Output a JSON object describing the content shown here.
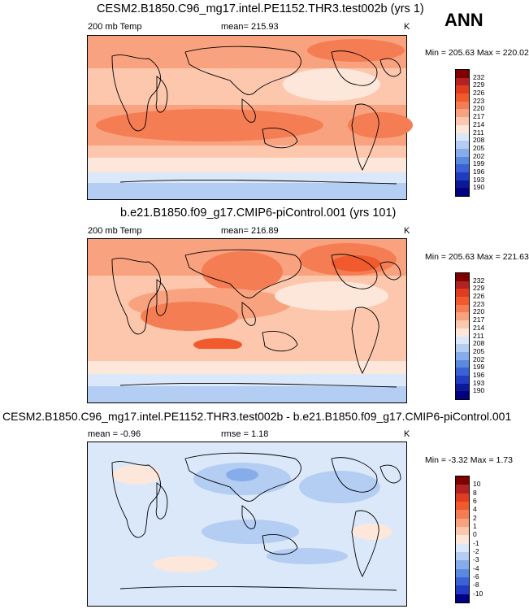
{
  "annual_label": "ANN",
  "panels": [
    {
      "title": "CESM2.B1850.C96_mg17.intel.PE1152.THR3.test002b (yrs 1)",
      "left_label": "200 mb Temp",
      "center_label": "mean= 215.93",
      "units": "K",
      "minmax": "Min = 205.63 Max = 220.02",
      "colorbar_labels": [
        "232",
        "229",
        "226",
        "223",
        "220",
        "217",
        "214",
        "211",
        "208",
        "205",
        "202",
        "199",
        "196",
        "193",
        "190"
      ]
    },
    {
      "title": "b.e21.B1850.f09_g17.CMIP6-piControl.001 (yrs 101)",
      "left_label": "200 mb Temp",
      "center_label": "mean= 216.89",
      "units": "K",
      "minmax": "Min = 205.63 Max = 221.63",
      "colorbar_labels": [
        "232",
        "229",
        "226",
        "223",
        "220",
        "217",
        "214",
        "211",
        "208",
        "205",
        "202",
        "199",
        "196",
        "193",
        "190"
      ]
    },
    {
      "title": "CESM2.B1850.C96_mg17.intel.PE1152.THR3.test002b - b.e21.B1850.f09_g17.CMIP6-piControl.001",
      "left_label": "mean =  -0.96",
      "center_label": "rmse =   1.18",
      "units": "K",
      "minmax": "Min =  -3.32 Max =   1.73",
      "colorbar_labels": [
        "10",
        "8",
        "6",
        "4",
        "2",
        "1",
        "0",
        "-1",
        "-2",
        "-3",
        "-4",
        "-6",
        "-8",
        "-10"
      ]
    }
  ],
  "colors": {
    "abs_scale": [
      "#800000",
      "#b22222",
      "#e03c1f",
      "#f05a2d",
      "#f57d53",
      "#f9a27f",
      "#fcc7ad",
      "#fde7da",
      "#dbe8f9",
      "#b3cdf3",
      "#86adea",
      "#5a8ae0",
      "#3a62d6",
      "#1f3cc2",
      "#0a1a96",
      "#000080"
    ],
    "diff_scale": [
      "#800000",
      "#b22222",
      "#e03c1f",
      "#f05a2d",
      "#f57d53",
      "#f9a27f",
      "#fcc7ad",
      "#fde7da",
      "#dbe8f9",
      "#b3cdf3",
      "#86adea",
      "#5a8ae0",
      "#3a62d6",
      "#1f3cc2",
      "#000080"
    ]
  },
  "chart_data": [
    {
      "type": "heatmap",
      "title": "CESM2.B1850.C96_mg17.intel.PE1152.THR3.test002b (yrs 1)",
      "variable": "200 mb Temp",
      "units": "K",
      "mean": 215.93,
      "min": 205.63,
      "max": 220.02,
      "levels": [
        190,
        193,
        196,
        199,
        202,
        205,
        208,
        211,
        214,
        217,
        220,
        223,
        226,
        229,
        232
      ]
    },
    {
      "type": "heatmap",
      "title": "b.e21.B1850.f09_g17.CMIP6-piControl.001 (yrs 101)",
      "variable": "200 mb Temp",
      "units": "K",
      "mean": 216.89,
      "min": 205.63,
      "max": 221.63,
      "levels": [
        190,
        193,
        196,
        199,
        202,
        205,
        208,
        211,
        214,
        217,
        220,
        223,
        226,
        229,
        232
      ]
    },
    {
      "type": "heatmap",
      "title": "CESM2.B1850.C96_mg17.intel.PE1152.THR3.test002b - b.e21.B1850.f09_g17.CMIP6-piControl.001",
      "units": "K",
      "mean": -0.96,
      "rmse": 1.18,
      "min": -3.32,
      "max": 1.73,
      "levels": [
        -10,
        -8,
        -6,
        -4,
        -3,
        -2,
        -1,
        0,
        1,
        2,
        4,
        6,
        8,
        10
      ]
    }
  ]
}
